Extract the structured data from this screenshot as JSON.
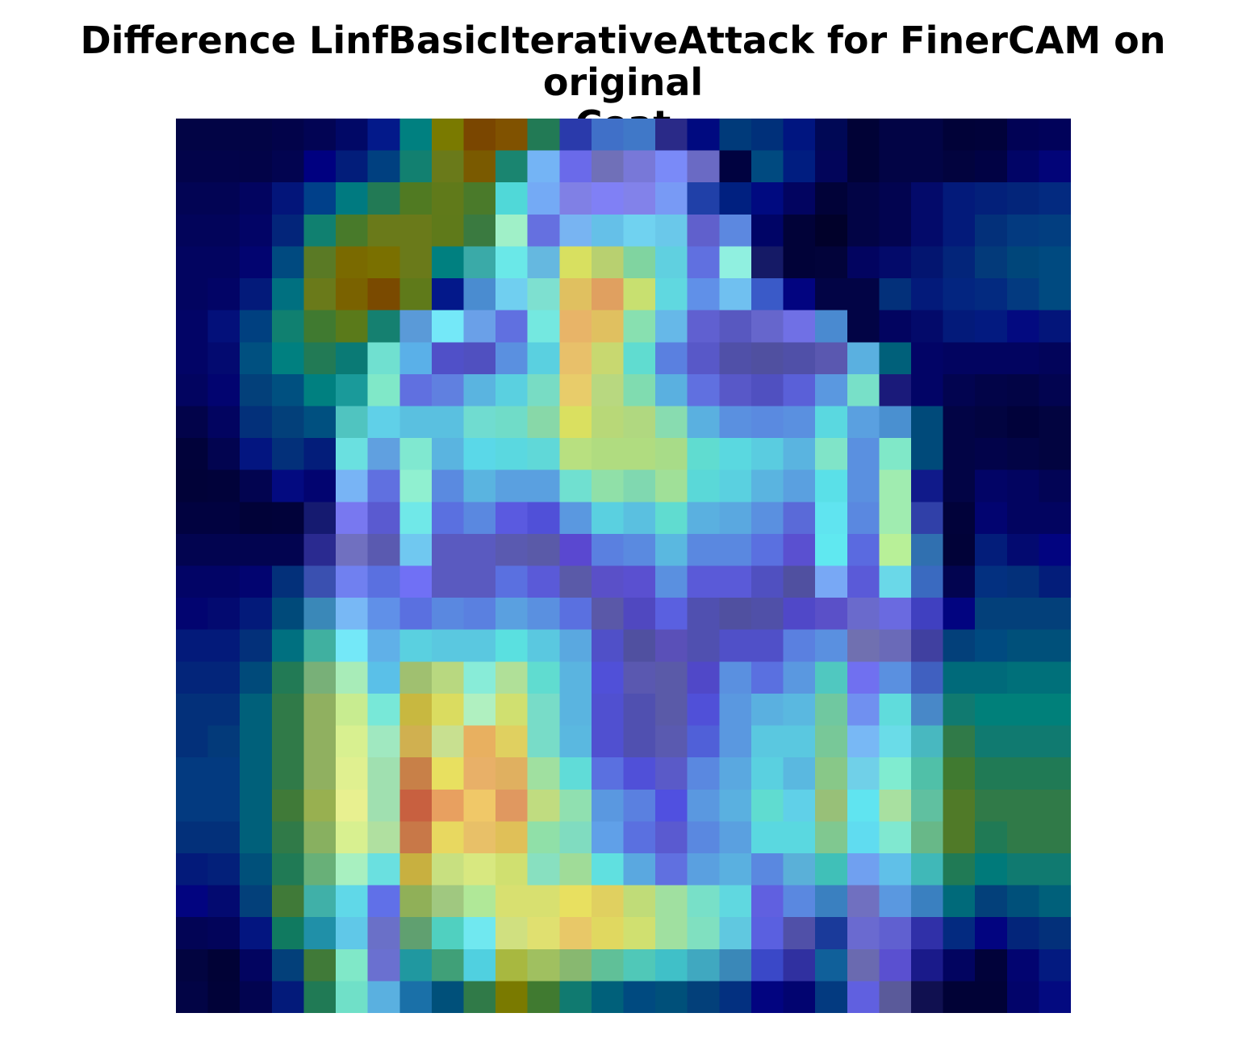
{
  "title_line1": "Difference LinfBasicIterativeAttack for FinerCAM on original",
  "title_line2": "Coat",
  "chart_data": {
    "type": "heatmap",
    "title": "Difference LinfBasicIterativeAttack for FinerCAM on original Coat",
    "rows": 28,
    "cols": 28,
    "axes": "off",
    "colormap_note": "jet heatmap overlaid on grayscale image",
    "pixels": [
      [
        "#020445",
        "#020445",
        "#020445",
        "#02034a",
        "#020454",
        "#010866",
        "#03198a",
        "#008080",
        "#7a7a00",
        "#7a4600",
        "#805200",
        "#227a55",
        "#2a3aab",
        "#4070c8",
        "#4078c8",
        "#2a2a88",
        "#000a80",
        "#003a7a",
        "#00307a",
        "#001580",
        "#000855",
        "#010236",
        "#020445",
        "#020445",
        "#010238",
        "#01023a",
        "#010255",
        "#01025a"
      ],
      [
        "#02034a",
        "#02034a",
        "#020348",
        "#020450",
        "#000080",
        "#021d7a",
        "#004080",
        "#128070",
        "#6a7a1a",
        "#7a5a00",
        "#1a8570",
        "#74b4f5",
        "#6a6aea",
        "#7070b8",
        "#7878d8",
        "#7a8af8",
        "#6a6ac4",
        "#000240",
        "#004a80",
        "#001d80",
        "#02055a",
        "#010236",
        "#020445",
        "#020445",
        "#02033e",
        "#010244",
        "#010466",
        "#020478"
      ],
      [
        "#020454",
        "#020454",
        "#020460",
        "#03157a",
        "#00408a",
        "#007a80",
        "#227a55",
        "#507a22",
        "#607a1a",
        "#4a7a2a",
        "#50d8d8",
        "#74aaf5",
        "#8080e5",
        "#8080f5",
        "#8282ea",
        "#789af5",
        "#2040a8",
        "#002080",
        "#000a80",
        "#020460",
        "#010238",
        "#020445",
        "#020450",
        "#030a6a",
        "#031a7a",
        "#03207a",
        "#03257a",
        "#032a80"
      ],
      [
        "#02045a",
        "#02045a",
        "#020466",
        "#03257a",
        "#108070",
        "#487a2a",
        "#6a7a1a",
        "#6a7a1a",
        "#5f7a1a",
        "#3a7a40",
        "#a0f0c8",
        "#6570e0",
        "#78b4f2",
        "#65c0e8",
        "#70d2f0",
        "#6ac8ea",
        "#6060cc",
        "#5c88e0",
        "#000466",
        "#010238",
        "#01012a",
        "#020445",
        "#020450",
        "#030a6a",
        "#031a7a",
        "#03307a",
        "#033a80",
        "#023e80"
      ],
      [
        "#020460",
        "#020460",
        "#020470",
        "#004a80",
        "#5a7a25",
        "#7a6a00",
        "#7a7000",
        "#6a7a1a",
        "#008080",
        "#3aaaa8",
        "#6ae8e8",
        "#65b8e0",
        "#d8e060",
        "#b8d070",
        "#80d4a0",
        "#60d0e0",
        "#6070e0",
        "#90f0e0",
        "#151a66",
        "#010238",
        "#02033a",
        "#020460",
        "#030a6a",
        "#031570",
        "#03257a",
        "#033a7a",
        "#00467a",
        "#004a80"
      ],
      [
        "#020460",
        "#020466",
        "#031a7a",
        "#007080",
        "#6a7a1a",
        "#7a6200",
        "#7a4a00",
        "#5f7a1a",
        "#03188a",
        "#4a8cd0",
        "#70cff0",
        "#7ee0d0",
        "#e0c060",
        "#e0a060",
        "#c8e070",
        "#60d8e0",
        "#6090e8",
        "#70c0f0",
        "#3a5ac8",
        "#020480",
        "#020445",
        "#020445",
        "#03307a",
        "#031a7a",
        "#032580",
        "#032a80",
        "#033a80",
        "#004a80"
      ],
      [
        "#020466",
        "#03107a",
        "#004080",
        "#108070",
        "#407a30",
        "#5a7a1a",
        "#158070",
        "#5a9ad8",
        "#74e8f8",
        "#6aa0e8",
        "#6070e0",
        "#74e8e0",
        "#e8b468",
        "#e0c060",
        "#88e0b0",
        "#66b8e8",
        "#6060d0",
        "#5858c0",
        "#6666cc",
        "#7070e5",
        "#4a8ad0",
        "#020445",
        "#020460",
        "#030a6a",
        "#031a7a",
        "#031a80",
        "#030a80",
        "#03157a"
      ],
      [
        "#020466",
        "#030a70",
        "#005080",
        "#008080",
        "#227a55",
        "#0a7a75",
        "#70e0d0",
        "#5ab0e8",
        "#5050c8",
        "#5050c0",
        "#5a90e0",
        "#5ad0e0",
        "#e8c06a",
        "#c8d870",
        "#60dcd0",
        "#5a80e0",
        "#5858c8",
        "#5050a8",
        "#5050a0",
        "#5050a8",
        "#5a58b0",
        "#5ab0e0",
        "#00607a",
        "#020466",
        "#020460",
        "#020460",
        "#020460",
        "#02045a"
      ],
      [
        "#020460",
        "#020470",
        "#03407a",
        "#005080",
        "#008080",
        "#1a9a9a",
        "#80e8c8",
        "#6070e0",
        "#6080e0",
        "#5ab4e0",
        "#5ad0e0",
        "#78dcc4",
        "#e8cc6a",
        "#b8d880",
        "#80dcb0",
        "#5ab0e0",
        "#6070e0",
        "#5858c8",
        "#5050c0",
        "#5a60d8",
        "#5a98e0",
        "#78e0c8",
        "#1a1a7a",
        "#020466",
        "#020450",
        "#020448",
        "#020445",
        "#020450"
      ],
      [
        "#02034a",
        "#020460",
        "#03307a",
        "#03407a",
        "#005080",
        "#50c4c0",
        "#60d0e8",
        "#5ac0e0",
        "#5ac0e0",
        "#70dcd0",
        "#70dcc8",
        "#88d8a8",
        "#dae060",
        "#b8d878",
        "#b0d880",
        "#88dcb0",
        "#5ab0e0",
        "#5a90e0",
        "#5a8ae0",
        "#5a90e0",
        "#5ad8e0",
        "#5aa0e0",
        "#4a90d0",
        "#004a7a",
        "#020445",
        "#020440",
        "#01023a",
        "#020440"
      ],
      [
        "#01023a",
        "#020450",
        "#031580",
        "#03307a",
        "#031d7a",
        "#6ae0e0",
        "#60a0e0",
        "#80e8d0",
        "#5ab4e0",
        "#5ad8e8",
        "#5ad8e0",
        "#60d8d8",
        "#b8e080",
        "#b0dc80",
        "#b0dc80",
        "#a8dc88",
        "#60dcd0",
        "#5ad8e0",
        "#5acce0",
        "#5ab4e0",
        "#80e4c8",
        "#5a90e0",
        "#80e8c8",
        "#004a7a",
        "#020445",
        "#02034a",
        "#020445",
        "#020440"
      ],
      [
        "#010238",
        "#01023a",
        "#020450",
        "#030a80",
        "#020470",
        "#78b4f5",
        "#6070e0",
        "#90f0d0",
        "#5a8ae0",
        "#5ab4e0",
        "#5aa0e0",
        "#5aa0e0",
        "#70e0d0",
        "#90e0a8",
        "#80d8b0",
        "#a0e098",
        "#5ad8d8",
        "#5ad0e0",
        "#5ab4e0",
        "#5aa0e0",
        "#5ae0e8",
        "#5a90e0",
        "#a0ecb0",
        "#101a8a",
        "#020445",
        "#020466",
        "#020460",
        "#020455"
      ],
      [
        "#010240",
        "#010240",
        "#010238",
        "#01023a",
        "#151a70",
        "#7878f0",
        "#5a5ad0",
        "#70e8e8",
        "#5a70e0",
        "#5a88e0",
        "#5a5ae0",
        "#5050d8",
        "#5a98e0",
        "#5ad0e0",
        "#5ac0e0",
        "#60dcd0",
        "#5ab0e0",
        "#5aa8e0",
        "#5a90e0",
        "#5a6ad8",
        "#60e4f0",
        "#5a88e0",
        "#a0ecb0",
        "#3040a8",
        "#01023a",
        "#020470",
        "#020460",
        "#020460"
      ],
      [
        "#020450",
        "#020450",
        "#020450",
        "#020450",
        "#2a2a90",
        "#7070c0",
        "#5a5ab0",
        "#70c8f0",
        "#5a5ac0",
        "#5a5ac0",
        "#5a5ab0",
        "#5a5aa8",
        "#5a48d0",
        "#5a80e0",
        "#5a8ae0",
        "#5ab8e0",
        "#5a88e0",
        "#5a88e0",
        "#5a70e0",
        "#5a50d0",
        "#60e8f0",
        "#5a6ae0",
        "#b8f098",
        "#3070b0",
        "#010238",
        "#031d7a",
        "#030a70",
        "#020480"
      ],
      [
        "#020466",
        "#020466",
        "#020470",
        "#03307a",
        "#3a50b0",
        "#7080f0",
        "#5a70e0",
        "#7070f5",
        "#5a5ac0",
        "#5a5ac0",
        "#5a70e0",
        "#5a5ad8",
        "#5a5aa8",
        "#5a50c8",
        "#5a50d0",
        "#5a90e0",
        "#5a5ad8",
        "#5a5ad8",
        "#5050c0",
        "#5050a0",
        "#78a8f5",
        "#5a5ad8",
        "#6ad8e8",
        "#3a6ac0",
        "#020450",
        "#033080",
        "#03307a",
        "#031d7a"
      ],
      [
        "#020470",
        "#030a70",
        "#031a7a",
        "#004a7a",
        "#3a88b8",
        "#78b8f5",
        "#6090e8",
        "#5a70e0",
        "#5a88e0",
        "#5a80e0",
        "#5aa0e0",
        "#5a90e0",
        "#5a70e0",
        "#5a58a8",
        "#5048c0",
        "#5a60e0",
        "#5050b0",
        "#5050a0",
        "#5050a8",
        "#5048c8",
        "#5a50c8",
        "#6a6acc",
        "#6a6ae0",
        "#4040c0",
        "#020480",
        "#03407a",
        "#03407a",
        "#03407a"
      ],
      [
        "#031a7a",
        "#031a7a",
        "#03307a",
        "#007080",
        "#40b0a0",
        "#74e8f8",
        "#60b0e8",
        "#5ad0e0",
        "#5ac8e0",
        "#5ac8e0",
        "#5ae0e0",
        "#5ac8e0",
        "#5aa8e0",
        "#5050c8",
        "#5050a0",
        "#5a50b8",
        "#5050b0",
        "#5050c8",
        "#5050c8",
        "#5a80e0",
        "#5a90e0",
        "#7070b0",
        "#6a6ab8",
        "#4040a0",
        "#03407a",
        "#004a80",
        "#00507a",
        "#00507a"
      ],
      [
        "#03257a",
        "#03257a",
        "#004a7a",
        "#227a55",
        "#78b078",
        "#a8ecb8",
        "#5ac0e8",
        "#a0c070",
        "#b8d880",
        "#88ecd8",
        "#b0e098",
        "#60dcd0",
        "#5ab4e0",
        "#5050d8",
        "#5a58b0",
        "#5a5aa8",
        "#5048c8",
        "#5a90e0",
        "#5a70e0",
        "#5a98e0",
        "#50c8c0",
        "#7070f0",
        "#5a90e0",
        "#4060c0",
        "#006a7a",
        "#006a7a",
        "#00707a",
        "#00707a"
      ],
      [
        "#03307a",
        "#03307a",
        "#00607a",
        "#307a48",
        "#90b060",
        "#c8ec90",
        "#78e8d8",
        "#c8b840",
        "#dadc60",
        "#b0f0c0",
        "#d0e070",
        "#78dcc8",
        "#5ab4e0",
        "#5050d0",
        "#5050b0",
        "#5a5aa8",
        "#5050d8",
        "#5a98e0",
        "#5ab0e0",
        "#5ab8e0",
        "#70c8a0",
        "#7090f0",
        "#60dcdc",
        "#4888c8",
        "#107a70",
        "#00807a",
        "#00807a",
        "#00807a"
      ],
      [
        "#03307a",
        "#033a7a",
        "#00607a",
        "#307a48",
        "#90b060",
        "#d8f090",
        "#a0e8c0",
        "#d0b050",
        "#c8e090",
        "#e8b060",
        "#e0d060",
        "#78dcc8",
        "#5ab8e0",
        "#5050d0",
        "#5050b0",
        "#5a5ab0",
        "#5060d8",
        "#5a98e0",
        "#5ac8e0",
        "#5ac8e0",
        "#78c898",
        "#78b8f5",
        "#6adce8",
        "#48b8c0",
        "#307a48",
        "#107a70",
        "#107a70",
        "#107a70"
      ],
      [
        "#033a80",
        "#033a80",
        "#00607a",
        "#307a48",
        "#90b060",
        "#e0f090",
        "#a0e0b0",
        "#c88048",
        "#e8e060",
        "#e8b068",
        "#e0b060",
        "#a0e0a0",
        "#60dcd8",
        "#5a70e0",
        "#5050d8",
        "#5a5ac8",
        "#5a88e0",
        "#5aa8e0",
        "#5ad0e0",
        "#5ab8e0",
        "#88c888",
        "#70d0e8",
        "#80ecd0",
        "#50c0a8",
        "#407a30",
        "#207a55",
        "#207a55",
        "#207a55"
      ],
      [
        "#033a80",
        "#033a80",
        "#00607a",
        "#407a38",
        "#98b050",
        "#e8f090",
        "#a0e0b0",
        "#c86040",
        "#e8a060",
        "#f0c868",
        "#e09860",
        "#c0dc80",
        "#90e0b0",
        "#5a98e0",
        "#5a80e0",
        "#5050e0",
        "#5a98e0",
        "#5ab0e0",
        "#60dcd0",
        "#60d0e8",
        "#98c078",
        "#60e4f0",
        "#a8e0a0",
        "#60c0a0",
        "#507a28",
        "#307a48",
        "#307a48",
        "#307a48"
      ],
      [
        "#03307a",
        "#03307a",
        "#00607a",
        "#307a48",
        "#88b060",
        "#d8f090",
        "#b0e0a0",
        "#c87848",
        "#e8d860",
        "#e8c068",
        "#e0c058",
        "#90e0a8",
        "#80dcc0",
        "#60a0e8",
        "#5a70e0",
        "#5a5ad0",
        "#5a88e0",
        "#5aa0e0",
        "#5ad8e0",
        "#5ad8e0",
        "#80c890",
        "#60dcf0",
        "#80e8d0",
        "#68b888",
        "#507a28",
        "#207a55",
        "#307a48",
        "#307a48"
      ],
      [
        "#031a7a",
        "#03207a",
        "#00507a",
        "#207a55",
        "#68b078",
        "#a8f0c0",
        "#6ae0e0",
        "#c8b040",
        "#c8e080",
        "#d8e880",
        "#d0e070",
        "#88e0c0",
        "#a0dc98",
        "#60e0e0",
        "#5aa8e0",
        "#6070e0",
        "#5aa0e0",
        "#5ab0e0",
        "#5a88e0",
        "#5ab0d8",
        "#40c0b8",
        "#70a0f0",
        "#60c0e8",
        "#40b8b8",
        "#207a55",
        "#007a7a",
        "#107a70",
        "#107a70"
      ],
      [
        "#020480",
        "#030a70",
        "#03407a",
        "#407a38",
        "#40b0a8",
        "#60d8e8",
        "#6070e8",
        "#90b058",
        "#a0c880",
        "#b0e898",
        "#d8e070",
        "#d8e070",
        "#e8e060",
        "#e0d060",
        "#c0dc78",
        "#a0e0a0",
        "#78e0c8",
        "#60d8e0",
        "#6060e0",
        "#5a88e0",
        "#3a80c0",
        "#7070c0",
        "#5a98e0",
        "#3a80c0",
        "#006a7a",
        "#03407a",
        "#00507a",
        "#00607a"
      ],
      [
        "#020455",
        "#02045a",
        "#031580",
        "#107a60",
        "#2090a8",
        "#60c8e8",
        "#6a70c8",
        "#60a070",
        "#50d0c0",
        "#70e8f0",
        "#d0e080",
        "#e0e070",
        "#e8c868",
        "#e0d860",
        "#d0e070",
        "#a0e0a0",
        "#80e0c0",
        "#60c8e0",
        "#5a60e0",
        "#5050a8",
        "#1a3a9a",
        "#6a6ad0",
        "#6060d0",
        "#3030a8",
        "#032a80",
        "#020480",
        "#03257a",
        "#03307a"
      ],
      [
        "#020440",
        "#010236",
        "#020460",
        "#03407a",
        "#407a38",
        "#80e8c8",
        "#6a70d0",
        "#2098a0",
        "#40a078",
        "#50d0e0",
        "#a8b840",
        "#a0c060",
        "#88b870",
        "#60c098",
        "#50c8b8",
        "#40c0c8",
        "#40a8c0",
        "#3a88b8",
        "#3a48c8",
        "#3030a0",
        "#10609a",
        "#6a6ab0",
        "#5a50d0",
        "#1a1a8a",
        "#020460",
        "#01023a",
        "#020470",
        "#031a80"
      ],
      [
        "#020445",
        "#010238",
        "#020450",
        "#031a7a",
        "#207a55",
        "#70e0c8",
        "#5ab0e0",
        "#1a70a8",
        "#00507a",
        "#307a48",
        "#7a7a00",
        "#407a30",
        "#107a70",
        "#00607a",
        "#004a80",
        "#00507a",
        "#03407a",
        "#033080",
        "#020480",
        "#020470",
        "#033a80",
        "#6060e0",
        "#5a5a9a",
        "#101050",
        "#010236",
        "#010236",
        "#02046a",
        "#030a80"
      ]
    ]
  }
}
